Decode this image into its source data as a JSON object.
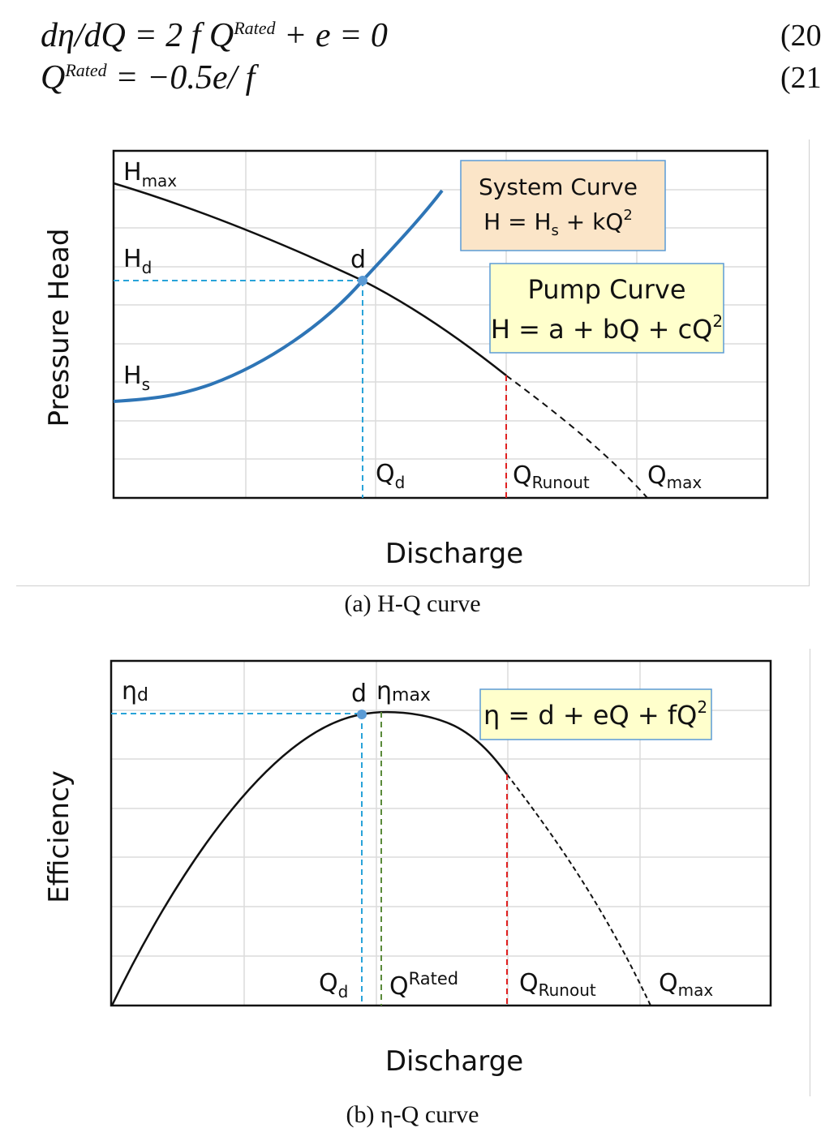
{
  "equations": [
    {
      "lhs": "dη/dQ",
      "rated": "Rated",
      "rhs_a": "= 2 f Q",
      "rhs_b": " + e = 0",
      "number": "(20"
    },
    {
      "lhs": "Q",
      "rated": "Rated",
      "rhs": " = −0.5e/ f",
      "number": "(21"
    }
  ],
  "captions": {
    "a": "(a) H-Q curve",
    "b": "(b) η-Q curve"
  },
  "chart_data": [
    {
      "type": "line",
      "title": "",
      "xlabel": "Discharge",
      "ylabel": "Pressure Head",
      "series": [
        {
          "name": "Pump Curve",
          "x": [
            0,
            1,
            2,
            3,
            3.9,
            4.5,
            5,
            5.5,
            6,
            6.5,
            7,
            7.5,
            8.1
          ],
          "y": [
            8,
            7.7,
            7.2,
            6.6,
            5.4,
            4.7,
            4.0,
            3.0,
            2.2,
            1.5,
            0.9,
            0.5,
            0
          ],
          "color": "#111111"
        },
        {
          "name": "System Curve",
          "x": [
            0,
            0.8,
            1.5,
            2,
            2.5,
            3,
            3.5,
            3.8,
            4.2,
            4.6,
            5
          ],
          "y": [
            2.5,
            2.6,
            2.9,
            3.2,
            3.6,
            4.1,
            4.8,
            5.3,
            5.8,
            6.6,
            7.5
          ],
          "color": "#2e75b6"
        }
      ],
      "xlim": [
        0,
        10
      ],
      "ylim": [
        0,
        9
      ],
      "grid": true,
      "labels": {
        "hmax": "H",
        "hmax_sub": "max",
        "hd": "H",
        "hd_sub": "d",
        "hs": "H",
        "hs_sub": "s",
        "point": "d",
        "qd": "Q",
        "qd_sub": "d",
        "qrunout": "Q",
        "qrunout_sub": "Runout",
        "qmax": "Q",
        "qmax_sub": "max"
      },
      "boxes": {
        "system_title": "System Curve",
        "system_eq_a": "H = H",
        "system_eq_sub": "s",
        "system_eq_b": " + kQ",
        "system_eq_sup": "2",
        "pump_title": "Pump Curve",
        "pump_eq": "H = a + bQ + cQ",
        "pump_eq_sup": "2"
      },
      "colors": {
        "system_box": "#fbe5c8",
        "pump_box": "#ffffcc",
        "box_border": "#5b9bd5",
        "design_line": "#29a3d9",
        "runout_line": "#e02020"
      }
    },
    {
      "type": "line",
      "title": "",
      "xlabel": "Discharge",
      "ylabel": "Efficiency",
      "series": [
        {
          "name": "η",
          "x": [
            0,
            1,
            2,
            3,
            3.8,
            4.1,
            4.5,
            5,
            5.5,
            6,
            6.5,
            7,
            7.5,
            8.1
          ],
          "y": [
            0,
            3.4,
            5.8,
            7.3,
            7.95,
            8.0,
            7.95,
            7.6,
            6.9,
            5.2,
            3.6,
            2.2,
            1.0,
            0
          ],
          "color": "#111111"
        }
      ],
      "xlim": [
        0,
        10
      ],
      "ylim": [
        0,
        9
      ],
      "grid": true,
      "labels": {
        "etad": "η",
        "etad_sub": "d",
        "point": "d",
        "etamax": "η",
        "etamax_sub": "max",
        "qd": "Q",
        "qd_sub": "d",
        "qrated": "Q",
        "qrated_sup": "Rated",
        "qrunout": "Q",
        "qrunout_sub": "Runout",
        "qmax": "Q",
        "qmax_sub": "max"
      },
      "boxes": {
        "eta_eq": "η = d + eQ + fQ",
        "eta_eq_sup": "2"
      },
      "colors": {
        "eta_box": "#ffffcc",
        "box_border": "#5b9bd5",
        "design_line": "#29a3d9",
        "rated_line": "#5a8a3a",
        "runout_line": "#e02020"
      }
    }
  ]
}
